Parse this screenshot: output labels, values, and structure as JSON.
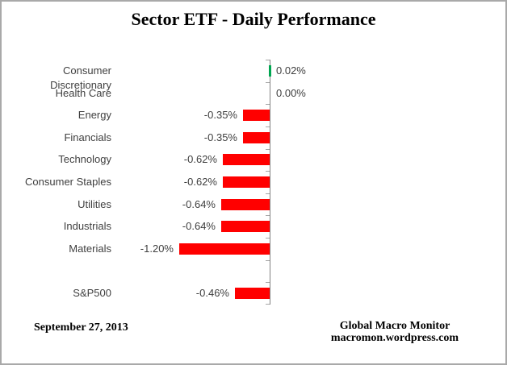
{
  "title": "Sector ETF - Daily Performance",
  "footer": {
    "date": "September 27, 2013",
    "source_line1": "Global Macro Monitor",
    "source_line2": "macromon.wordpress.com"
  },
  "colors": {
    "positive_bar": "#00A651",
    "negative_bar": "#FF0000",
    "axis_line": "#808080",
    "tick": "#A6A6A6",
    "label_text": "#3F3F3F"
  },
  "chart_data": {
    "type": "bar",
    "orientation": "horizontal",
    "title": "Sector ETF - Daily Performance",
    "categories": [
      "Consumer Discretionary",
      "Health Care",
      "Energy",
      "Financials",
      "Technology",
      "Consumer Staples",
      "Utilities",
      "Industrials",
      "Materials",
      "",
      "S&P500"
    ],
    "values": [
      0.02,
      0.0,
      -0.35,
      -0.35,
      -0.62,
      -0.62,
      -0.64,
      -0.64,
      -1.2,
      null,
      -0.46
    ],
    "value_labels": [
      "0.02%",
      "0.00%",
      "-0.35%",
      "-0.35%",
      "-0.62%",
      "-0.62%",
      "-0.64%",
      "-0.64%",
      "-1.20%",
      "",
      "-0.46%"
    ],
    "unit": "percent",
    "xlim": [
      -1.4,
      0.2
    ],
    "grid": false,
    "legend": false,
    "value_labels_position": "outside-end"
  }
}
